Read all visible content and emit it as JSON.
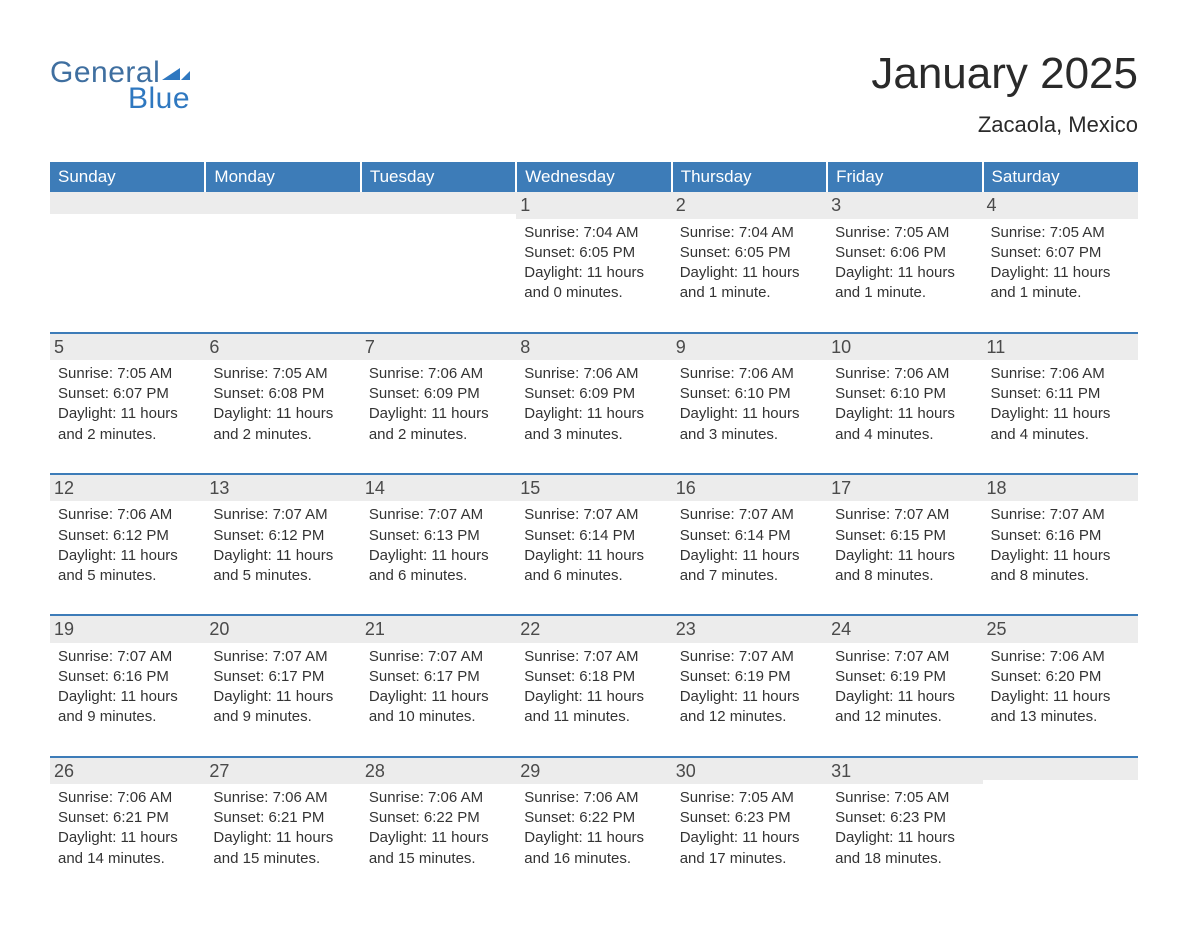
{
  "brand": {
    "text1": "General",
    "text2": "Blue",
    "icon_color": "#2f78c0",
    "text1_color": "#3f6fa0",
    "text2_color": "#2f78c0"
  },
  "header": {
    "month_title": "January 2025",
    "location": "Zacaola, Mexico"
  },
  "colors": {
    "header_bg": "#3d7cb8",
    "header_text": "#ffffff",
    "daynum_bg": "#ececec",
    "body_text": "#333333",
    "rule": "#3d7cb8"
  },
  "day_headers": [
    "Sunday",
    "Monday",
    "Tuesday",
    "Wednesday",
    "Thursday",
    "Friday",
    "Saturday"
  ],
  "weeks": [
    [
      {
        "day": "",
        "sunrise": "",
        "sunset": "",
        "daylight1": "",
        "daylight2": ""
      },
      {
        "day": "",
        "sunrise": "",
        "sunset": "",
        "daylight1": "",
        "daylight2": ""
      },
      {
        "day": "",
        "sunrise": "",
        "sunset": "",
        "daylight1": "",
        "daylight2": ""
      },
      {
        "day": "1",
        "sunrise": "Sunrise: 7:04 AM",
        "sunset": "Sunset: 6:05 PM",
        "daylight1": "Daylight: 11 hours",
        "daylight2": "and 0 minutes."
      },
      {
        "day": "2",
        "sunrise": "Sunrise: 7:04 AM",
        "sunset": "Sunset: 6:05 PM",
        "daylight1": "Daylight: 11 hours",
        "daylight2": "and 1 minute."
      },
      {
        "day": "3",
        "sunrise": "Sunrise: 7:05 AM",
        "sunset": "Sunset: 6:06 PM",
        "daylight1": "Daylight: 11 hours",
        "daylight2": "and 1 minute."
      },
      {
        "day": "4",
        "sunrise": "Sunrise: 7:05 AM",
        "sunset": "Sunset: 6:07 PM",
        "daylight1": "Daylight: 11 hours",
        "daylight2": "and 1 minute."
      }
    ],
    [
      {
        "day": "5",
        "sunrise": "Sunrise: 7:05 AM",
        "sunset": "Sunset: 6:07 PM",
        "daylight1": "Daylight: 11 hours",
        "daylight2": "and 2 minutes."
      },
      {
        "day": "6",
        "sunrise": "Sunrise: 7:05 AM",
        "sunset": "Sunset: 6:08 PM",
        "daylight1": "Daylight: 11 hours",
        "daylight2": "and 2 minutes."
      },
      {
        "day": "7",
        "sunrise": "Sunrise: 7:06 AM",
        "sunset": "Sunset: 6:09 PM",
        "daylight1": "Daylight: 11 hours",
        "daylight2": "and 2 minutes."
      },
      {
        "day": "8",
        "sunrise": "Sunrise: 7:06 AM",
        "sunset": "Sunset: 6:09 PM",
        "daylight1": "Daylight: 11 hours",
        "daylight2": "and 3 minutes."
      },
      {
        "day": "9",
        "sunrise": "Sunrise: 7:06 AM",
        "sunset": "Sunset: 6:10 PM",
        "daylight1": "Daylight: 11 hours",
        "daylight2": "and 3 minutes."
      },
      {
        "day": "10",
        "sunrise": "Sunrise: 7:06 AM",
        "sunset": "Sunset: 6:10 PM",
        "daylight1": "Daylight: 11 hours",
        "daylight2": "and 4 minutes."
      },
      {
        "day": "11",
        "sunrise": "Sunrise: 7:06 AM",
        "sunset": "Sunset: 6:11 PM",
        "daylight1": "Daylight: 11 hours",
        "daylight2": "and 4 minutes."
      }
    ],
    [
      {
        "day": "12",
        "sunrise": "Sunrise: 7:06 AM",
        "sunset": "Sunset: 6:12 PM",
        "daylight1": "Daylight: 11 hours",
        "daylight2": "and 5 minutes."
      },
      {
        "day": "13",
        "sunrise": "Sunrise: 7:07 AM",
        "sunset": "Sunset: 6:12 PM",
        "daylight1": "Daylight: 11 hours",
        "daylight2": "and 5 minutes."
      },
      {
        "day": "14",
        "sunrise": "Sunrise: 7:07 AM",
        "sunset": "Sunset: 6:13 PM",
        "daylight1": "Daylight: 11 hours",
        "daylight2": "and 6 minutes."
      },
      {
        "day": "15",
        "sunrise": "Sunrise: 7:07 AM",
        "sunset": "Sunset: 6:14 PM",
        "daylight1": "Daylight: 11 hours",
        "daylight2": "and 6 minutes."
      },
      {
        "day": "16",
        "sunrise": "Sunrise: 7:07 AM",
        "sunset": "Sunset: 6:14 PM",
        "daylight1": "Daylight: 11 hours",
        "daylight2": "and 7 minutes."
      },
      {
        "day": "17",
        "sunrise": "Sunrise: 7:07 AM",
        "sunset": "Sunset: 6:15 PM",
        "daylight1": "Daylight: 11 hours",
        "daylight2": "and 8 minutes."
      },
      {
        "day": "18",
        "sunrise": "Sunrise: 7:07 AM",
        "sunset": "Sunset: 6:16 PM",
        "daylight1": "Daylight: 11 hours",
        "daylight2": "and 8 minutes."
      }
    ],
    [
      {
        "day": "19",
        "sunrise": "Sunrise: 7:07 AM",
        "sunset": "Sunset: 6:16 PM",
        "daylight1": "Daylight: 11 hours",
        "daylight2": "and 9 minutes."
      },
      {
        "day": "20",
        "sunrise": "Sunrise: 7:07 AM",
        "sunset": "Sunset: 6:17 PM",
        "daylight1": "Daylight: 11 hours",
        "daylight2": "and 9 minutes."
      },
      {
        "day": "21",
        "sunrise": "Sunrise: 7:07 AM",
        "sunset": "Sunset: 6:17 PM",
        "daylight1": "Daylight: 11 hours",
        "daylight2": "and 10 minutes."
      },
      {
        "day": "22",
        "sunrise": "Sunrise: 7:07 AM",
        "sunset": "Sunset: 6:18 PM",
        "daylight1": "Daylight: 11 hours",
        "daylight2": "and 11 minutes."
      },
      {
        "day": "23",
        "sunrise": "Sunrise: 7:07 AM",
        "sunset": "Sunset: 6:19 PM",
        "daylight1": "Daylight: 11 hours",
        "daylight2": "and 12 minutes."
      },
      {
        "day": "24",
        "sunrise": "Sunrise: 7:07 AM",
        "sunset": "Sunset: 6:19 PM",
        "daylight1": "Daylight: 11 hours",
        "daylight2": "and 12 minutes."
      },
      {
        "day": "25",
        "sunrise": "Sunrise: 7:06 AM",
        "sunset": "Sunset: 6:20 PM",
        "daylight1": "Daylight: 11 hours",
        "daylight2": "and 13 minutes."
      }
    ],
    [
      {
        "day": "26",
        "sunrise": "Sunrise: 7:06 AM",
        "sunset": "Sunset: 6:21 PM",
        "daylight1": "Daylight: 11 hours",
        "daylight2": "and 14 minutes."
      },
      {
        "day": "27",
        "sunrise": "Sunrise: 7:06 AM",
        "sunset": "Sunset: 6:21 PM",
        "daylight1": "Daylight: 11 hours",
        "daylight2": "and 15 minutes."
      },
      {
        "day": "28",
        "sunrise": "Sunrise: 7:06 AM",
        "sunset": "Sunset: 6:22 PM",
        "daylight1": "Daylight: 11 hours",
        "daylight2": "and 15 minutes."
      },
      {
        "day": "29",
        "sunrise": "Sunrise: 7:06 AM",
        "sunset": "Sunset: 6:22 PM",
        "daylight1": "Daylight: 11 hours",
        "daylight2": "and 16 minutes."
      },
      {
        "day": "30",
        "sunrise": "Sunrise: 7:05 AM",
        "sunset": "Sunset: 6:23 PM",
        "daylight1": "Daylight: 11 hours",
        "daylight2": "and 17 minutes."
      },
      {
        "day": "31",
        "sunrise": "Sunrise: 7:05 AM",
        "sunset": "Sunset: 6:23 PM",
        "daylight1": "Daylight: 11 hours",
        "daylight2": "and 18 minutes."
      },
      {
        "day": "",
        "sunrise": "",
        "sunset": "",
        "daylight1": "",
        "daylight2": ""
      }
    ]
  ]
}
